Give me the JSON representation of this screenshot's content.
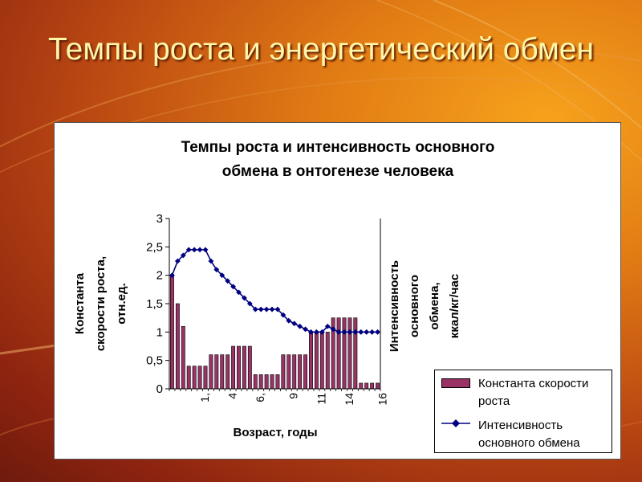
{
  "slide": {
    "title": "Темпы роста и энергетический обмен"
  },
  "colors": {
    "bar": "#993366",
    "line": "#000080"
  },
  "chart_data": {
    "type": "bar+line",
    "title_line1": "Темпы роста и интенсивность основного",
    "title_line2": "обмена в онтогенезе человека",
    "xlabel": "Возраст, годы",
    "ylabel_left": [
      "Константа",
      "скорости роста,",
      "отн.ед."
    ],
    "ylabel_right": [
      "Интенсивность",
      "основного",
      "обмена,",
      "ккал/кг/час"
    ],
    "ylim": [
      0,
      3
    ],
    "yticks": [
      "0",
      "0,5",
      "1",
      "1,5",
      "2",
      "2,5",
      "3"
    ],
    "xtick_labels": [
      {
        "index": 6,
        "text": "1,"
      },
      {
        "index": 11,
        "text": "4"
      },
      {
        "index": 16,
        "text": "6,"
      },
      {
        "index": 22,
        "text": "9"
      },
      {
        "index": 27,
        "text": "11"
      },
      {
        "index": 32,
        "text": "14"
      },
      {
        "index": 38,
        "text": "16"
      }
    ],
    "grid": false,
    "legend_position": "bottom-right",
    "series": [
      {
        "name": "Константа скорости роста",
        "type": "bar",
        "values": [
          2.0,
          1.5,
          1.1,
          0.4,
          0.4,
          0.4,
          0.4,
          0.6,
          0.6,
          0.6,
          0.6,
          0.75,
          0.75,
          0.75,
          0.75,
          0.25,
          0.25,
          0.25,
          0.25,
          0.25,
          0.6,
          0.6,
          0.6,
          0.6,
          0.6,
          1.0,
          1.0,
          1.0,
          1.0,
          1.25,
          1.25,
          1.25,
          1.25,
          1.25,
          0.1,
          0.1,
          0.1,
          0.1
        ]
      },
      {
        "name": "Интенсивность основного обмена",
        "type": "line",
        "values": [
          2.0,
          2.25,
          2.35,
          2.45,
          2.45,
          2.45,
          2.45,
          2.25,
          2.1,
          2.0,
          1.9,
          1.8,
          1.7,
          1.6,
          1.5,
          1.4,
          1.4,
          1.4,
          1.4,
          1.4,
          1.3,
          1.2,
          1.15,
          1.1,
          1.05,
          1.0,
          1.0,
          1.0,
          1.1,
          1.05,
          1.0,
          1.0,
          1.0,
          1.0,
          1.0,
          1.0,
          1.0,
          1.0
        ]
      }
    ]
  }
}
